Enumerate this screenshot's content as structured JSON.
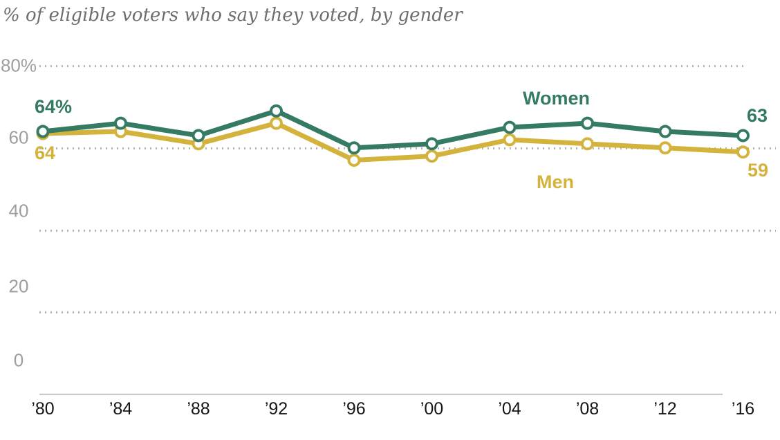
{
  "title": "% of eligible voters who say they voted, by gender",
  "chart_data": {
    "type": "line",
    "title": "% of eligible voters who say they voted, by gender",
    "x_labels": [
      "’80",
      "’84",
      "’88",
      "’92",
      "’96",
      "’00",
      "’04",
      "’08",
      "’12",
      "’16"
    ],
    "y_ticks": [
      "80%",
      "60",
      "40",
      "20",
      "0"
    ],
    "y_tick_values": [
      80,
      60,
      40,
      20,
      0
    ],
    "ylim": [
      0,
      80
    ],
    "grid": "horizontal dotted lines at 20-unit intervals, solid baseline at 0, legend labels placed inline near lines",
    "series": [
      {
        "name": "Women",
        "color": "#357b64",
        "values": [
          64,
          66,
          63,
          69,
          60,
          61,
          65,
          66,
          64,
          63
        ],
        "first_label": "64%",
        "last_label": "63"
      },
      {
        "name": "Men",
        "color": "#d4b33c",
        "values": [
          64,
          64,
          61,
          66,
          57,
          58,
          62,
          61,
          60,
          59
        ],
        "first_label": "64",
        "last_label": "59"
      }
    ]
  }
}
